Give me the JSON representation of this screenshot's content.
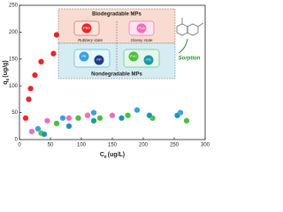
{
  "chart_data": {
    "type": "scatter",
    "x_label": {
      "main": "C",
      "sub": "e",
      "unit": "(ug/L)"
    },
    "y_label": {
      "main": "q",
      "sub": "e",
      "unit": "(ug/g)"
    },
    "xlim": [
      0,
      300
    ],
    "xticks": [
      0,
      50,
      100,
      150,
      200,
      250,
      300
    ],
    "ylim": [
      0,
      250
    ],
    "yticks": [
      0,
      50,
      100,
      150,
      200,
      250
    ],
    "series": [
      {
        "color": "#e8262b",
        "x": [
          10,
          15,
          18,
          25,
          35,
          55,
          60
        ],
        "values": [
          40,
          75,
          95,
          120,
          145,
          160,
          195
        ]
      },
      {
        "color": "#f06fb8",
        "x": [
          20,
          45,
          80,
          110,
          150
        ],
        "values": [
          15,
          35,
          40,
          45,
          45
        ]
      },
      {
        "color": "#3aa0e0",
        "x": [
          30,
          70,
          120,
          190,
          260
        ],
        "values": [
          20,
          40,
          50,
          55,
          50
        ]
      },
      {
        "color": "#4cbf3c",
        "x": [
          35,
          60,
          95,
          130,
          175,
          215,
          270
        ],
        "values": [
          12,
          30,
          40,
          40,
          45,
          40,
          35
        ]
      },
      {
        "color": "#1a9aa8",
        "x": [
          40,
          80,
          120,
          165,
          210,
          255
        ],
        "values": [
          10,
          25,
          35,
          40,
          45,
          45
        ]
      }
    ],
    "inset": {
      "top": "Biodegradable MPs",
      "bottom": "Nondegradable MPs",
      "left_state": "Rubbery state",
      "right_state": "Glassy state",
      "polymers": [
        "PBS",
        "PLA",
        "PE",
        "PP",
        "PVC",
        "PS"
      ],
      "process": "Sorption"
    }
  }
}
